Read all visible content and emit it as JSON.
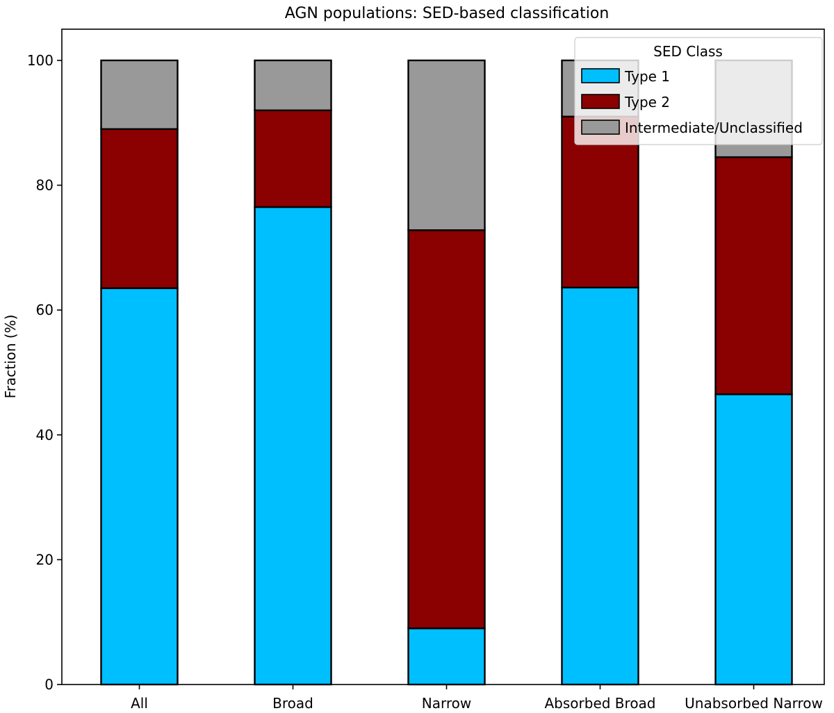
{
  "chart_data": {
    "type": "bar",
    "stacked": true,
    "title": "AGN populations: SED-based classification",
    "xlabel": "",
    "ylabel": "Fraction (%)",
    "ylim": [
      0,
      105
    ],
    "yticks": [
      0,
      20,
      40,
      60,
      80,
      100
    ],
    "categories": [
      "All",
      "Broad",
      "Narrow",
      "Absorbed Broad",
      "Unabsorbed Narrow"
    ],
    "series": [
      {
        "name": "Type 1",
        "color": "#00bfff",
        "values": [
          63.5,
          76.5,
          9.0,
          63.6,
          46.5
        ]
      },
      {
        "name": "Type 2",
        "color": "#8b0000",
        "values": [
          25.5,
          15.5,
          63.8,
          27.4,
          38.0
        ]
      },
      {
        "name": "Intermediate/Unclassified",
        "color": "#999999",
        "values": [
          11.0,
          8.0,
          27.2,
          9.0,
          15.5
        ]
      }
    ],
    "grid": false,
    "legend": {
      "title": "SED Class",
      "placement": "top-right"
    }
  }
}
